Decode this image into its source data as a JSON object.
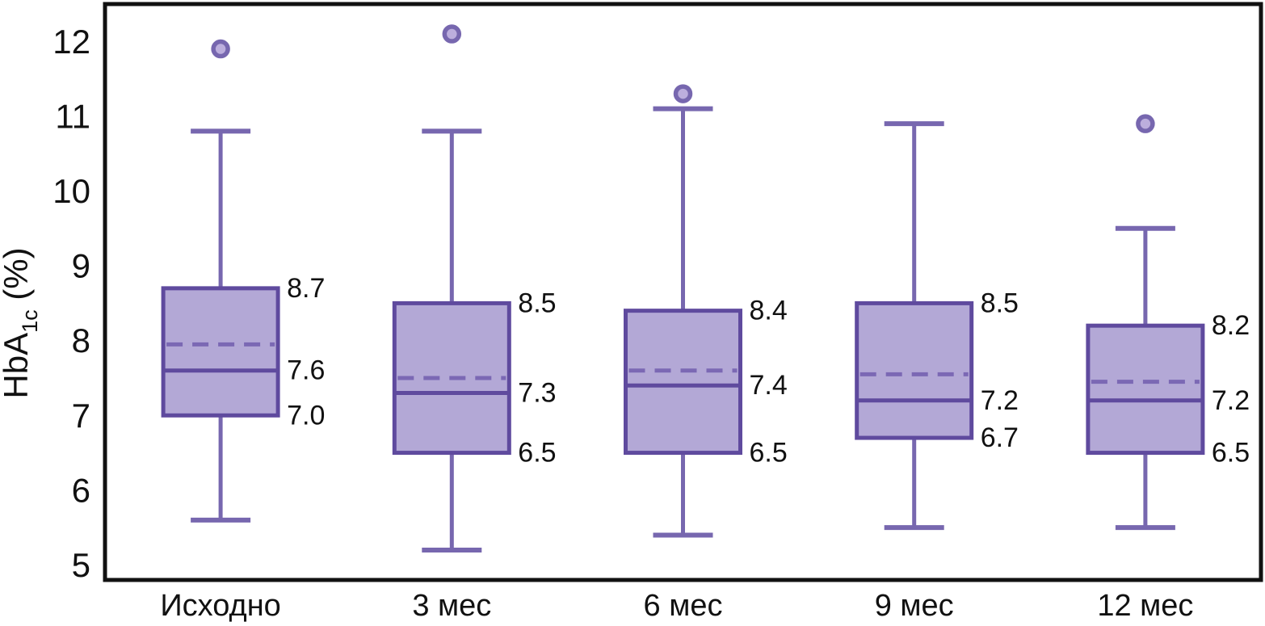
{
  "chart_data": {
    "type": "boxplot",
    "title": "",
    "ylabel": {
      "main": "HbA",
      "sub": "1c",
      "unit": " (%)"
    },
    "axis": {
      "ymin": 4.8,
      "ymax": 12.5,
      "yticks": [
        5,
        6,
        7,
        8,
        9,
        10,
        11,
        12
      ],
      "grid": false
    },
    "categories": [
      "Исходно",
      "3 мес",
      "6 мес",
      "9 мес",
      "12 мес"
    ],
    "series": [
      {
        "category": "Исходно",
        "whisker_low": 5.6,
        "q1": 7.0,
        "median": 7.6,
        "mean": 7.95,
        "q3": 8.7,
        "whisker_high": 10.8,
        "outliers": [
          11.9
        ],
        "labels": {
          "q3": "8.7",
          "median": "7.6",
          "q1": "7.0"
        }
      },
      {
        "category": "3 мес",
        "whisker_low": 5.2,
        "q1": 6.5,
        "median": 7.3,
        "mean": 7.5,
        "q3": 8.5,
        "whisker_high": 10.8,
        "outliers": [
          12.1
        ],
        "labels": {
          "q3": "8.5",
          "median": "7.3",
          "q1": "6.5"
        }
      },
      {
        "category": "6 мес",
        "whisker_low": 5.4,
        "q1": 6.5,
        "median": 7.4,
        "mean": 7.6,
        "q3": 8.4,
        "whisker_high": 11.1,
        "outliers": [
          11.3
        ],
        "labels": {
          "q3": "8.4",
          "median": "7.4",
          "q1": "6.5"
        }
      },
      {
        "category": "9 мес",
        "whisker_low": 5.5,
        "q1": 6.7,
        "median": 7.2,
        "mean": 7.55,
        "q3": 8.5,
        "whisker_high": 10.9,
        "outliers": [],
        "labels": {
          "q3": "8.5",
          "median": "7.2",
          "q1": "6.7"
        }
      },
      {
        "category": "12 мес",
        "whisker_low": 5.5,
        "q1": 6.5,
        "median": 7.2,
        "mean": 7.45,
        "q3": 8.2,
        "whisker_high": 9.5,
        "outliers": [
          10.9
        ],
        "labels": {
          "q3": "8.2",
          "median": "7.2",
          "q1": "6.5"
        }
      }
    ],
    "colors": {
      "box_fill": "#b3a8d6",
      "box_border": "#5f4a9e",
      "median": "#5f4a9e",
      "whisker": "#7767af",
      "mean_dash": "#7b68b4",
      "outlier_stroke": "#7767af",
      "outlier_fill": "#bcaedd",
      "frame": "#111111",
      "text": "#111111"
    },
    "legend": null
  }
}
